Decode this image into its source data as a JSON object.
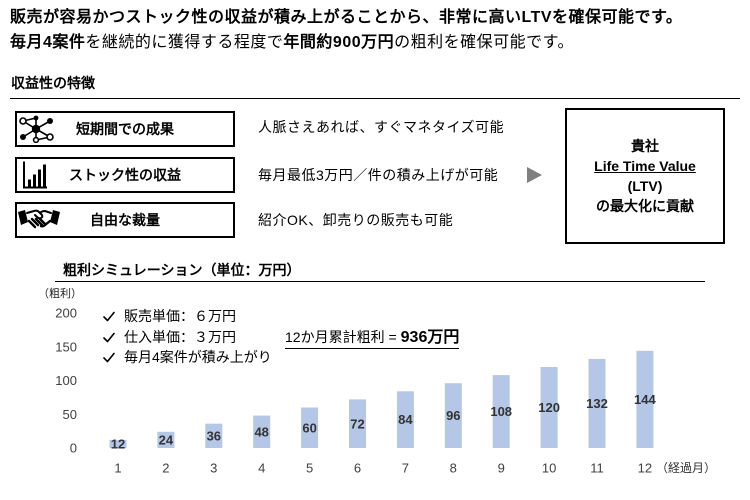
{
  "headline": {
    "line1": "販売が容易かつストック性の収益が積み上がることから、非常に高いLTVを確保可能です。",
    "line2": {
      "part1": "毎月4案件",
      "part2": "を継続的に獲得する程度で",
      "part3": "年間約900万円",
      "part4": "の粗利を確保可能です。"
    }
  },
  "features": {
    "heading": "収益性の特徴",
    "items": [
      {
        "icon": "network-icon",
        "label": "短期間での成果",
        "description": "人脈さえあれば、すぐマネタイズ可能"
      },
      {
        "icon": "bar-chart-icon",
        "label": "ストック性の収益",
        "description": "毎月最低3万円／件の積み上げが可能"
      },
      {
        "icon": "handshake-icon",
        "label": "自由な裁量",
        "description": "紹介OK、卸売りの販売も可能"
      }
    ],
    "arrow_icon": "triangle-right-icon"
  },
  "result": {
    "line1": "貴社",
    "line2": "Life Time Value",
    "line3": "(LTV)",
    "line4": "の最大化に貢献"
  },
  "simulation": {
    "check_icon": "check-icon",
    "bullets": [
      "販売単価：６万円",
      "仕入単価：３万円",
      "毎月4案件が積み上がり"
    ],
    "total_label": "12か月累計粗利 =",
    "total_value": "936万円"
  },
  "colors": {
    "text": "#000000",
    "bar": "#b4c7e7",
    "arrow": "#7f7f7f",
    "axis_text": "#404040"
  },
  "chart_data": {
    "type": "bar",
    "title": "粗利シミュレーション（単位：万円）",
    "ylabel": "（粗利）",
    "xlabel": "（経過月）",
    "categories": [
      "1",
      "2",
      "3",
      "4",
      "5",
      "6",
      "7",
      "8",
      "9",
      "10",
      "11",
      "12"
    ],
    "values": [
      12,
      24,
      36,
      48,
      60,
      72,
      84,
      96,
      108,
      120,
      132,
      144
    ],
    "ylim": [
      0,
      200
    ],
    "yticks": [
      0,
      50,
      100,
      150,
      200
    ],
    "data_labels": true,
    "grid": false
  }
}
